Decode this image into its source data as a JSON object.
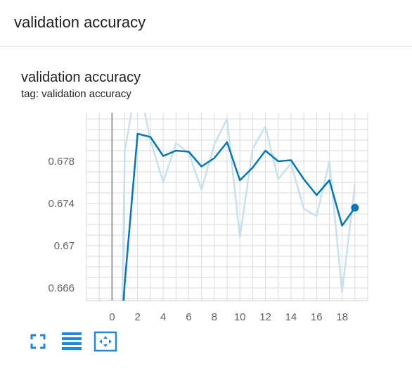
{
  "header": {
    "title": "validation accuracy"
  },
  "card": {
    "title": "validation accuracy",
    "tag": "tag: validation accuracy"
  },
  "toolbar": {
    "icons": [
      "fullscreen-icon",
      "toggle-log-scale-icon",
      "fit-domain-icon"
    ]
  },
  "colors": {
    "smoothed": "#0277bd",
    "raw": "#c6e2ef",
    "grid": "#dadada",
    "axis": "#9e9e9e",
    "icon": "#1e88e5"
  },
  "chart_data": {
    "type": "line",
    "title": "validation accuracy",
    "xlabel": "",
    "ylabel": "",
    "xlim": [
      -2,
      20
    ],
    "ylim": [
      0.6648,
      0.6826
    ],
    "x_ticks": [
      0,
      2,
      4,
      6,
      8,
      10,
      12,
      14,
      16,
      18
    ],
    "x_tick_labels": [
      "0",
      "2",
      "4",
      "6",
      "8",
      "10",
      "12",
      "14",
      "16",
      "18"
    ],
    "y_ticks": [
      0.666,
      0.67,
      0.674,
      0.678
    ],
    "y_tick_labels": [
      "0.666",
      "0.67",
      "0.674",
      "0.678"
    ],
    "grid": true,
    "series": [
      {
        "name": "",
        "style": "raw",
        "x": [
          0.8,
          1,
          2,
          3,
          4,
          5,
          6,
          7,
          8,
          9,
          10,
          11,
          12,
          13,
          14,
          15,
          16,
          17,
          18,
          19
        ],
        "y": [
          0.6648,
          0.679,
          0.686,
          0.68,
          0.676,
          0.6797,
          0.6788,
          0.6753,
          0.6796,
          0.682,
          0.6708,
          0.6792,
          0.6813,
          0.6763,
          0.6778,
          0.6735,
          0.6728,
          0.678,
          0.6656,
          0.6758
        ]
      },
      {
        "name": "",
        "style": "smoothed",
        "x": [
          0.9,
          1,
          2,
          3,
          4,
          5,
          6,
          7,
          8,
          9,
          10,
          11,
          12,
          13,
          14,
          15,
          16,
          17,
          18,
          19
        ],
        "y": [
          0.6648,
          0.6665,
          0.6806,
          0.6803,
          0.6785,
          0.679,
          0.6789,
          0.6775,
          0.6783,
          0.6798,
          0.6762,
          0.6774,
          0.679,
          0.678,
          0.6781,
          0.6763,
          0.6748,
          0.6762,
          0.6719,
          0.6736
        ]
      }
    ],
    "highlight_point": {
      "x": 19,
      "y": 0.6736
    }
  }
}
